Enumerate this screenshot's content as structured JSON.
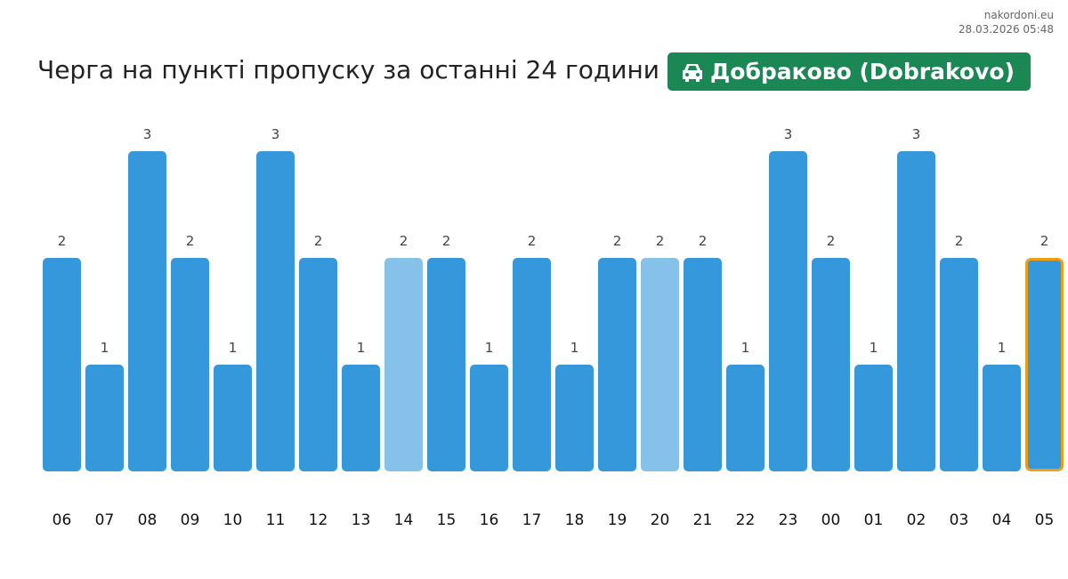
{
  "header": {
    "site": "nakordoni.eu",
    "timestamp": "28.03.2026 05:48",
    "title": "Черга на пункті пропуску за останні 24 години",
    "checkpoint": "Добраково (Dobrakovo)",
    "checkpoint_icon": "car-icon"
  },
  "chart_data": {
    "type": "bar",
    "categories": [
      "06",
      "07",
      "08",
      "09",
      "10",
      "11",
      "12",
      "13",
      "14",
      "15",
      "16",
      "17",
      "18",
      "19",
      "20",
      "21",
      "22",
      "23",
      "00",
      "01",
      "02",
      "03",
      "04",
      "05"
    ],
    "values": [
      2,
      1,
      3,
      2,
      1,
      3,
      2,
      1,
      2,
      2,
      1,
      2,
      1,
      2,
      2,
      2,
      1,
      3,
      2,
      1,
      3,
      2,
      1,
      2
    ],
    "light_bars": [
      "14",
      "20"
    ],
    "highlighted_bar": "05",
    "colors": {
      "bar": "#3498db",
      "light": "#85c1e9",
      "highlight_border": "#f39c12"
    },
    "ylim": [
      0,
      3
    ],
    "grid": false
  }
}
